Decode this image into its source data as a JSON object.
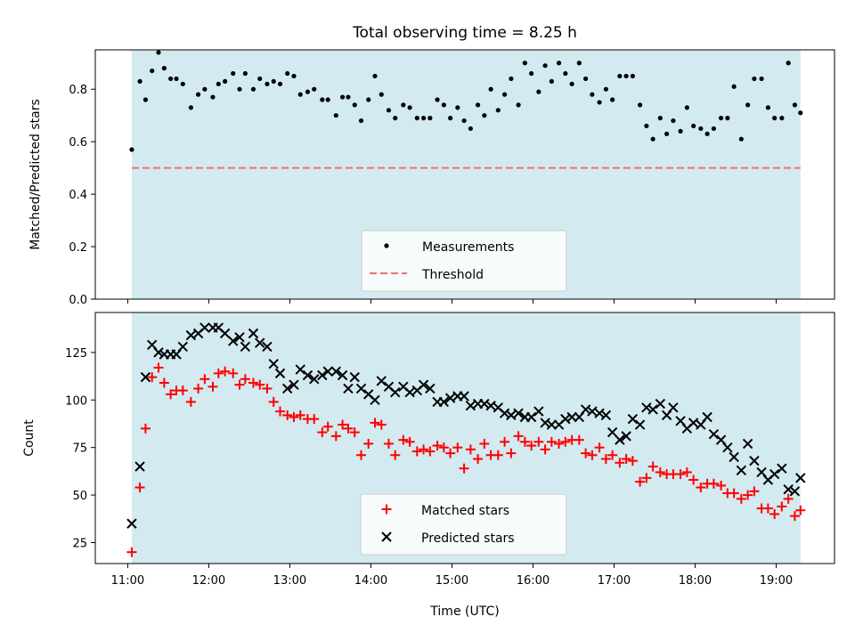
{
  "colors": {
    "background_band": "#d3eaf0",
    "measurements": "#000000",
    "threshold": "#f07070",
    "matched": "#ff0000",
    "predicted": "#000000"
  },
  "chart_data": [
    {
      "type": "scatter",
      "title": "Total observing time = 8.25 h",
      "xlabel": "",
      "ylabel": "Matched/Predicted stars",
      "x_unit": "hours UTC",
      "xlim": [
        10.6,
        19.72
      ],
      "ylim": [
        0,
        0.95
      ],
      "yticks": [
        0.0,
        0.2,
        0.4,
        0.6,
        0.8
      ],
      "ytick_labels": [
        "0.0",
        "0.2",
        "0.4",
        "0.6",
        "0.8"
      ],
      "shaded_range": [
        11.05,
        19.3
      ],
      "threshold": {
        "name": "Threshold",
        "value": 0.5,
        "x_range": [
          11.05,
          19.3
        ]
      },
      "legend": {
        "placement": "lower-center",
        "entries": [
          "Measurements",
          "Threshold"
        ]
      },
      "series": [
        {
          "name": "Measurements",
          "marker": "dot",
          "x": [
            11.05,
            11.15,
            11.22,
            11.3,
            11.38,
            11.45,
            11.53,
            11.6,
            11.68,
            11.78,
            11.87,
            11.95,
            12.05,
            12.12,
            12.2,
            12.3,
            12.38,
            12.45,
            12.55,
            12.63,
            12.72,
            12.8,
            12.88,
            12.97,
            13.05,
            13.13,
            13.22,
            13.3,
            13.4,
            13.47,
            13.57,
            13.65,
            13.72,
            13.8,
            13.88,
            13.97,
            14.05,
            14.13,
            14.22,
            14.3,
            14.4,
            14.48,
            14.57,
            14.65,
            14.73,
            14.82,
            14.9,
            14.98,
            15.07,
            15.15,
            15.23,
            15.32,
            15.4,
            15.48,
            15.57,
            15.65,
            15.73,
            15.82,
            15.9,
            15.98,
            16.07,
            16.15,
            16.23,
            16.32,
            16.4,
            16.48,
            16.57,
            16.65,
            16.73,
            16.82,
            16.9,
            16.98,
            17.07,
            17.15,
            17.23,
            17.32,
            17.4,
            17.48,
            17.57,
            17.65,
            17.73,
            17.82,
            17.9,
            17.98,
            18.07,
            18.15,
            18.23,
            18.32,
            18.4,
            18.48,
            18.57,
            18.65,
            18.73,
            18.82,
            18.9,
            18.98,
            19.07,
            19.15,
            19.23,
            19.3
          ],
          "y": [
            0.57,
            0.83,
            0.76,
            0.87,
            0.94,
            0.88,
            0.84,
            0.84,
            0.82,
            0.73,
            0.78,
            0.8,
            0.77,
            0.82,
            0.83,
            0.86,
            0.8,
            0.86,
            0.8,
            0.84,
            0.82,
            0.83,
            0.82,
            0.86,
            0.85,
            0.78,
            0.79,
            0.8,
            0.76,
            0.76,
            0.7,
            0.77,
            0.77,
            0.74,
            0.68,
            0.76,
            0.85,
            0.78,
            0.72,
            0.69,
            0.74,
            0.73,
            0.69,
            0.69,
            0.69,
            0.76,
            0.74,
            0.69,
            0.73,
            0.68,
            0.65,
            0.74,
            0.7,
            0.8,
            0.72,
            0.78,
            0.84,
            0.74,
            0.9,
            0.86,
            0.79,
            0.89,
            0.83,
            0.9,
            0.86,
            0.82,
            0.9,
            0.84,
            0.78,
            0.75,
            0.8,
            0.76,
            0.85,
            0.85,
            0.85,
            0.74,
            0.66,
            0.61,
            0.69,
            0.63,
            0.68,
            0.64,
            0.73,
            0.66,
            0.65,
            0.63,
            0.65,
            0.69,
            0.69,
            0.81,
            0.61,
            0.74,
            0.84,
            0.84,
            0.73,
            0.69,
            0.69,
            0.9,
            0.74,
            0.71
          ]
        }
      ]
    },
    {
      "type": "scatter",
      "title": "",
      "xlabel": "Time (UTC)",
      "ylabel": "Count",
      "x_unit": "hours UTC",
      "xlim": [
        10.6,
        19.72
      ],
      "ylim": [
        14,
        146
      ],
      "xticks": [
        11,
        12,
        13,
        14,
        15,
        16,
        17,
        18,
        19
      ],
      "xtick_labels": [
        "11:00",
        "12:00",
        "13:00",
        "14:00",
        "15:00",
        "16:00",
        "17:00",
        "18:00",
        "19:00"
      ],
      "yticks": [
        25,
        50,
        75,
        100,
        125
      ],
      "ytick_labels": [
        "25",
        "50",
        "75",
        "100",
        "125"
      ],
      "shaded_range": [
        11.05,
        19.3
      ],
      "legend": {
        "placement": "lower-center",
        "entries": [
          "Matched stars",
          "Predicted stars"
        ]
      },
      "series": [
        {
          "name": "Matched stars",
          "marker": "plus",
          "x": [
            11.05,
            11.15,
            11.22,
            11.3,
            11.38,
            11.45,
            11.53,
            11.6,
            11.68,
            11.78,
            11.87,
            11.95,
            12.05,
            12.12,
            12.2,
            12.3,
            12.38,
            12.45,
            12.55,
            12.63,
            12.72,
            12.8,
            12.88,
            12.97,
            13.05,
            13.13,
            13.22,
            13.3,
            13.4,
            13.47,
            13.57,
            13.65,
            13.72,
            13.8,
            13.88,
            13.97,
            14.05,
            14.13,
            14.22,
            14.3,
            14.4,
            14.48,
            14.57,
            14.65,
            14.73,
            14.82,
            14.9,
            14.98,
            15.07,
            15.15,
            15.23,
            15.32,
            15.4,
            15.48,
            15.57,
            15.65,
            15.73,
            15.82,
            15.9,
            15.98,
            16.07,
            16.15,
            16.23,
            16.32,
            16.4,
            16.48,
            16.57,
            16.65,
            16.73,
            16.82,
            16.9,
            16.98,
            17.07,
            17.15,
            17.23,
            17.32,
            17.4,
            17.48,
            17.57,
            17.65,
            17.73,
            17.82,
            17.9,
            17.98,
            18.07,
            18.15,
            18.23,
            18.32,
            18.4,
            18.48,
            18.57,
            18.65,
            18.73,
            18.82,
            18.9,
            18.98,
            19.07,
            19.15,
            19.23,
            19.3
          ],
          "y": [
            20,
            54,
            85,
            112,
            117,
            109,
            103,
            105,
            105,
            99,
            106,
            111,
            107,
            114,
            115,
            114,
            108,
            111,
            109,
            108,
            106,
            99,
            94,
            92,
            91,
            92,
            90,
            90,
            83,
            86,
            81,
            87,
            85,
            83,
            71,
            77,
            88,
            87,
            77,
            71,
            79,
            78,
            73,
            74,
            73,
            76,
            75,
            72,
            75,
            64,
            74,
            69,
            77,
            71,
            71,
            78,
            72,
            81,
            78,
            76,
            78,
            74,
            78,
            77,
            78,
            79,
            79,
            72,
            71,
            75,
            69,
            71,
            67,
            69,
            68,
            57,
            59,
            65,
            62,
            61,
            61,
            61,
            62,
            58,
            54,
            56,
            56,
            55,
            51,
            51,
            48,
            50,
            52,
            43,
            43,
            40,
            44,
            48,
            39,
            42
          ]
        },
        {
          "name": "Predicted stars",
          "marker": "x",
          "x": [
            11.05,
            11.15,
            11.22,
            11.3,
            11.38,
            11.45,
            11.53,
            11.6,
            11.68,
            11.78,
            11.87,
            11.95,
            12.05,
            12.12,
            12.2,
            12.3,
            12.38,
            12.45,
            12.55,
            12.63,
            12.72,
            12.8,
            12.88,
            12.97,
            13.05,
            13.13,
            13.22,
            13.3,
            13.4,
            13.47,
            13.57,
            13.65,
            13.72,
            13.8,
            13.88,
            13.97,
            14.05,
            14.13,
            14.22,
            14.3,
            14.4,
            14.48,
            14.57,
            14.65,
            14.73,
            14.82,
            14.9,
            14.98,
            15.07,
            15.15,
            15.23,
            15.32,
            15.4,
            15.48,
            15.57,
            15.65,
            15.73,
            15.82,
            15.9,
            15.98,
            16.07,
            16.15,
            16.23,
            16.32,
            16.4,
            16.48,
            16.57,
            16.65,
            16.73,
            16.82,
            16.9,
            16.98,
            17.07,
            17.15,
            17.23,
            17.32,
            17.4,
            17.48,
            17.57,
            17.65,
            17.73,
            17.82,
            17.9,
            17.98,
            18.07,
            18.15,
            18.23,
            18.32,
            18.4,
            18.48,
            18.57,
            18.65,
            18.73,
            18.82,
            18.9,
            18.98,
            19.07,
            19.15,
            19.23,
            19.3
          ],
          "y": [
            35,
            65,
            112,
            129,
            125,
            124,
            124,
            124,
            128,
            134,
            135,
            138,
            138,
            138,
            135,
            131,
            133,
            128,
            135,
            130,
            128,
            119,
            114,
            106,
            108,
            116,
            113,
            111,
            113,
            115,
            115,
            113,
            106,
            112,
            106,
            103,
            100,
            110,
            107,
            104,
            107,
            104,
            105,
            108,
            106,
            99,
            99,
            101,
            102,
            102,
            97,
            98,
            98,
            97,
            96,
            93,
            92,
            93,
            91,
            91,
            94,
            88,
            87,
            87,
            90,
            91,
            91,
            95,
            94,
            93,
            92,
            83,
            79,
            81,
            90,
            87,
            96,
            95,
            98,
            92,
            96,
            89,
            85,
            88,
            87,
            91,
            82,
            79,
            75,
            70,
            63,
            77,
            68,
            62,
            58,
            61,
            64,
            53,
            52,
            59
          ]
        }
      ]
    }
  ]
}
